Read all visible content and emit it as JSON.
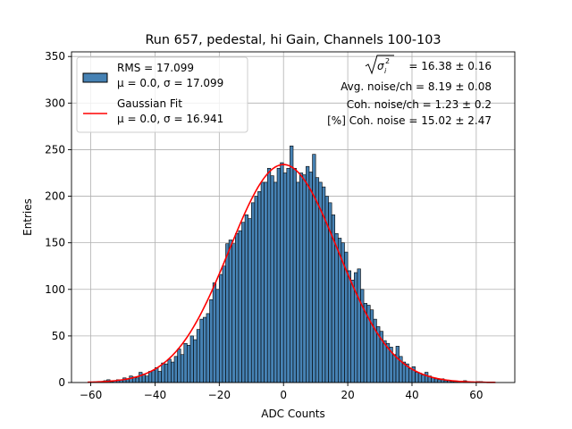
{
  "chart_data": {
    "type": "histogram",
    "title": "Run 657, pedestal, hi Gain, Channels 100-103",
    "xlabel": "ADC Counts",
    "ylabel": "Entries",
    "xlim": [
      -66,
      72
    ],
    "ylim": [
      0,
      355
    ],
    "xticks": [
      -60,
      -40,
      -20,
      0,
      20,
      40,
      60
    ],
    "xtick_labels": [
      "−60",
      "−40",
      "−20",
      "0",
      "20",
      "40",
      "60"
    ],
    "yticks": [
      0,
      50,
      100,
      150,
      200,
      250,
      300,
      350
    ],
    "ytick_labels": [
      "0",
      "50",
      "100",
      "150",
      "200",
      "250",
      "300",
      "350"
    ],
    "grid": true,
    "bins": {
      "start": -61,
      "width": 1,
      "counts": [
        0,
        0,
        0,
        0,
        1,
        2,
        3,
        1,
        2,
        3,
        3,
        5,
        4,
        7,
        6,
        5,
        11,
        9,
        7,
        12,
        13,
        16,
        12,
        21,
        20,
        25,
        22,
        28,
        36,
        30,
        42,
        40,
        50,
        46,
        57,
        68,
        70,
        74,
        89,
        107,
        100,
        116,
        125,
        149,
        153,
        149,
        160,
        163,
        172,
        180,
        176,
        193,
        200,
        205,
        215,
        215,
        230,
        222,
        215,
        230,
        236,
        225,
        230,
        254,
        230,
        215,
        225,
        223,
        232,
        226,
        245,
        220,
        215,
        210,
        200,
        193,
        180,
        160,
        155,
        150,
        140,
        120,
        110,
        118,
        122,
        100,
        85,
        83,
        78,
        68,
        60,
        55,
        45,
        42,
        38,
        30,
        39,
        28,
        22,
        20,
        15,
        17,
        11,
        10,
        8,
        11,
        7,
        5,
        4,
        3,
        4,
        2,
        2,
        1,
        1,
        1,
        0,
        2,
        1,
        0,
        0,
        1,
        1,
        0,
        0,
        0,
        0
      ]
    },
    "fit": {
      "type": "gaussian",
      "mu": 0.0,
      "sigma": 16.941,
      "amplitude": 234
    },
    "legend": {
      "placement": "top-left",
      "entries": [
        {
          "kind": "patch",
          "color": "#4682b4",
          "line1": "RMS = 17.099",
          "line2": "μ = 0.0, σ = 17.099"
        },
        {
          "kind": "line",
          "color": "#ff0000",
          "line1": "Gaussian Fit",
          "line2": "μ = 0.0, σ = 16.941"
        }
      ]
    },
    "annotations": {
      "sigma_symbol": "σ",
      "sigma_sub": "i",
      "sigma_sup": "2",
      "line1_rest": " = 16.38 ± 0.16",
      "line2": "Avg. noise/ch = 8.19 ± 0.08",
      "line3": "Coh. noise/ch = 1.23 ± 0.2",
      "line4": "[%] Coh. noise = 15.02 ± 2.47"
    },
    "colors": {
      "bar_fill": "#4682b4",
      "bar_edge": "#000000",
      "fit_line": "#ff0000",
      "grid": "#b0b0b0"
    }
  }
}
